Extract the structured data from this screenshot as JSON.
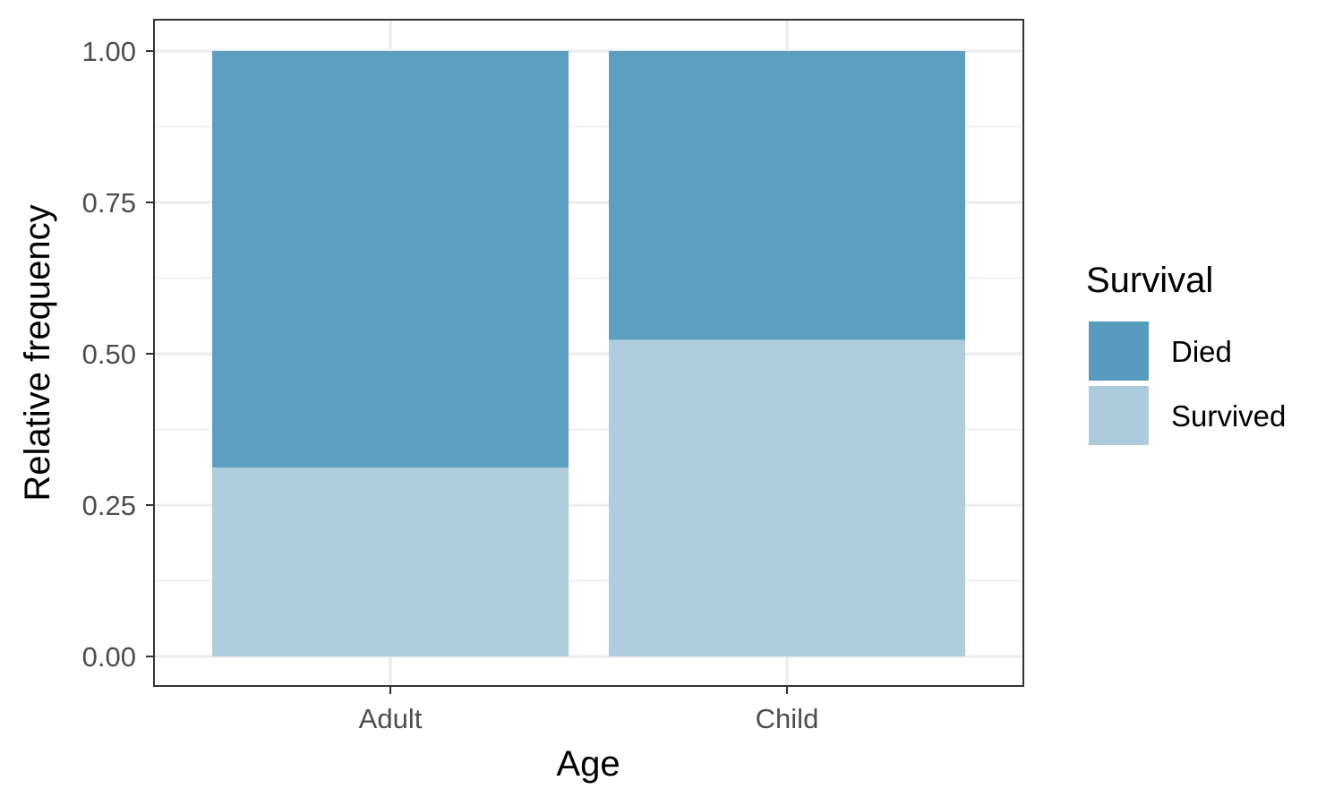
{
  "chart_data": {
    "type": "bar",
    "stacked": true,
    "categories": [
      "Adult",
      "Child"
    ],
    "series": [
      {
        "name": "Survived",
        "values": [
          0.312,
          0.523
        ],
        "color": "#acccdc"
      },
      {
        "name": "Died",
        "values": [
          0.688,
          0.477
        ],
        "color": "#569bbd"
      }
    ],
    "xlabel": "Age",
    "ylabel": "Relative frequency",
    "ylim": [
      0,
      1
    ],
    "yticks": [
      0,
      0.25,
      0.5,
      0.75,
      1
    ],
    "ytick_labels": [
      "0.00",
      "0.25",
      "0.50",
      "0.75",
      "1.00"
    ],
    "grid": true,
    "legend": {
      "title": "Survival",
      "position": "right",
      "items": [
        {
          "label": "Died",
          "color": "#569bbd"
        },
        {
          "label": "Survived",
          "color": "#acccdc"
        }
      ]
    }
  }
}
